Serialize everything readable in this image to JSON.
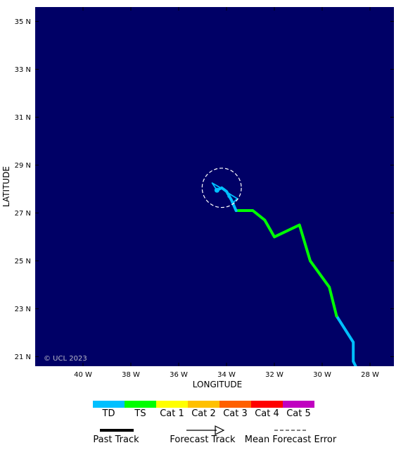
{
  "map": {
    "background_color": "#000066",
    "lon_range": [
      -42.0,
      -27.0
    ],
    "lat_range": [
      20.6,
      35.6
    ],
    "x_axis_title": "LONGITUDE",
    "y_axis_title": "LATITUDE",
    "copyright": "© UCL 2023",
    "lon_ticks": [
      {
        "value": -40,
        "label": "40 W"
      },
      {
        "value": -38,
        "label": "38 W"
      },
      {
        "value": -36,
        "label": "36 W"
      },
      {
        "value": -34,
        "label": "34 W"
      },
      {
        "value": -32,
        "label": "32 W"
      },
      {
        "value": -30,
        "label": "30 W"
      },
      {
        "value": -28,
        "label": "28 W"
      }
    ],
    "lat_ticks": [
      {
        "value": 35,
        "label": "35 N"
      },
      {
        "value": 33,
        "label": "33 N"
      },
      {
        "value": 31,
        "label": "31 N"
      },
      {
        "value": 29,
        "label": "29 N"
      },
      {
        "value": 27,
        "label": "27 N"
      },
      {
        "value": 25,
        "label": "25 N"
      },
      {
        "value": 23,
        "label": "23 N"
      },
      {
        "value": 21,
        "label": "21 N"
      }
    ]
  },
  "track": {
    "past_segments": [
      {
        "category": "TD",
        "color": "#00c0ff",
        "points": [
          [
            -28.6,
            20.6
          ],
          [
            -28.7,
            20.8
          ],
          [
            -28.7,
            21.6
          ],
          [
            -29.4,
            22.7
          ]
        ]
      },
      {
        "category": "TS",
        "color": "#00ff00",
        "points": [
          [
            -29.4,
            22.7
          ],
          [
            -29.7,
            23.9
          ],
          [
            -30.5,
            25.0
          ],
          [
            -30.95,
            26.5
          ],
          [
            -32.0,
            26.0
          ],
          [
            -32.4,
            26.7
          ],
          [
            -32.9,
            27.1
          ],
          [
            -33.6,
            27.1
          ]
        ]
      },
      {
        "category": "TD",
        "color": "#00c0ff",
        "points": [
          [
            -33.6,
            27.1
          ],
          [
            -33.8,
            27.55
          ],
          [
            -34.0,
            27.9
          ],
          [
            -34.2,
            28.05
          ],
          [
            -34.4,
            27.95
          ]
        ]
      }
    ],
    "forecast_segments": [
      {
        "category": "TD",
        "color": "#00c0ff",
        "points": [
          [
            -34.4,
            27.95
          ],
          [
            -34.6,
            28.25
          ],
          [
            -34.25,
            28.05
          ],
          [
            -33.8,
            27.75
          ],
          [
            -33.55,
            27.6
          ],
          [
            -33.7,
            27.45
          ],
          [
            -33.95,
            27.7
          ]
        ]
      }
    ],
    "current_position": [
      -34.4,
      27.95
    ],
    "error_circle": {
      "center": [
        -34.2,
        28.05
      ],
      "radius_deg": 0.82
    }
  },
  "legend": {
    "categories": [
      {
        "label": "TD",
        "color": "#00c0ff"
      },
      {
        "label": "TS",
        "color": "#00ff00"
      },
      {
        "label": "Cat 1",
        "color": "#ffff00"
      },
      {
        "label": "Cat 2",
        "color": "#ffc000"
      },
      {
        "label": "Cat 3",
        "color": "#ff6000"
      },
      {
        "label": "Cat 4",
        "color": "#ff0000"
      },
      {
        "label": "Cat 5",
        "color": "#c000c0"
      }
    ],
    "past_track_label": "Past Track",
    "forecast_track_label": "Forecast Track",
    "mean_error_label": "Mean Forecast Error"
  }
}
